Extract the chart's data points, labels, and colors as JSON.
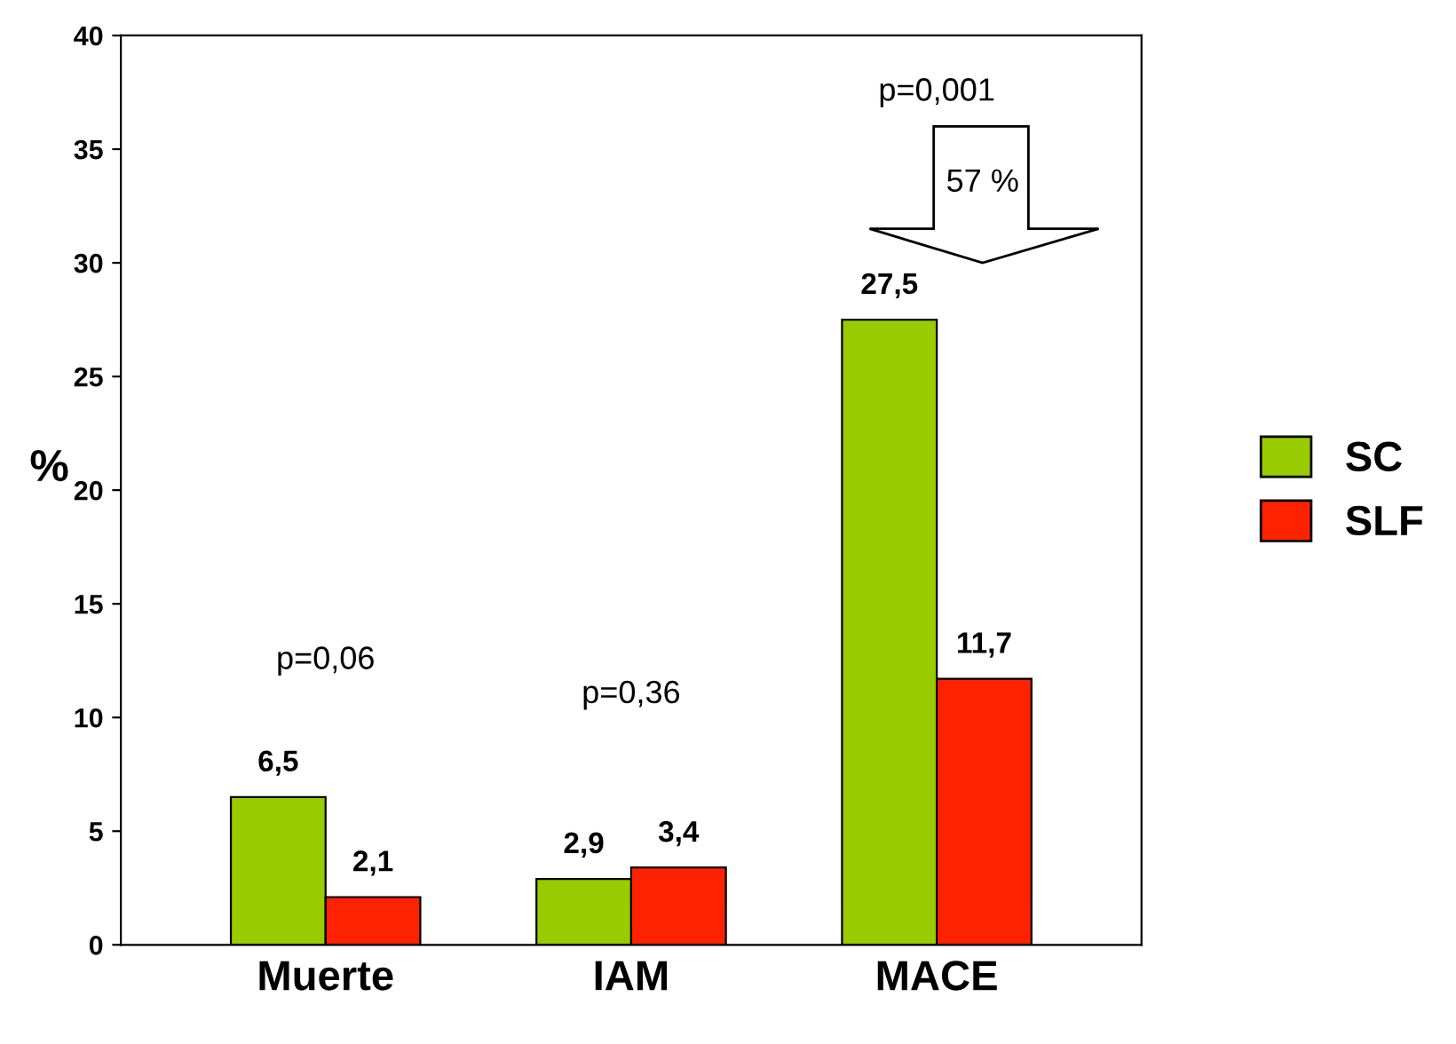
{
  "chart_data": {
    "type": "bar",
    "categories": [
      "Muerte",
      "IAM",
      "MACE"
    ],
    "series": [
      {
        "name": "SC",
        "color": "#99cc00",
        "values": [
          6.5,
          2.9,
          27.5
        ],
        "value_labels": [
          "6,5",
          "2,9",
          "27,5"
        ]
      },
      {
        "name": "SLF",
        "color": "#ff2200",
        "values": [
          2.1,
          3.4,
          11.7
        ],
        "value_labels": [
          "2,1",
          "3,4",
          "11,7"
        ]
      }
    ],
    "ylabel": "%",
    "ylim": [
      0,
      40
    ],
    "yticks": [
      0,
      5,
      10,
      15,
      20,
      25,
      30,
      35,
      40
    ],
    "grid": false,
    "legend": "right",
    "annotations": [
      "p=0,06",
      "p=0,36",
      "p=0,001",
      "57 %"
    ]
  }
}
